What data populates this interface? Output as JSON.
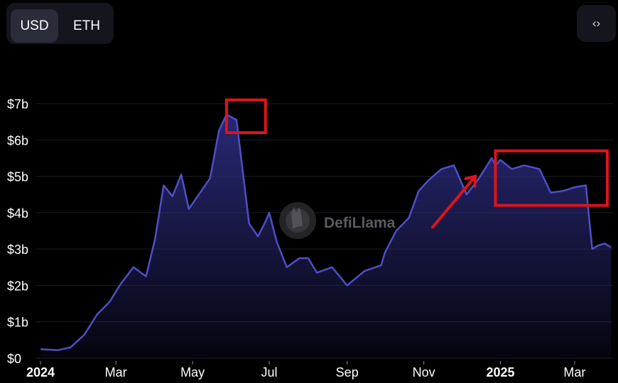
{
  "toggle": {
    "options": [
      "USD",
      "ETH"
    ],
    "selected": "USD"
  },
  "embed_icon": "code-brackets-icon",
  "watermark": {
    "text": "DefiLlama",
    "icon": "llama-logo-icon"
  },
  "colors": {
    "line": "#4f4fc7",
    "area_top": "#2a2a7a",
    "highlight_box": "#e0121c",
    "arrow": "#e0121c"
  },
  "chart_data": {
    "type": "area",
    "title": "",
    "xlabel": "",
    "ylabel": "",
    "ylim": [
      0,
      7
    ],
    "y_ticks": [
      "$0",
      "$1b",
      "$2b",
      "$3b",
      "$4b",
      "$5b",
      "$6b",
      "$7b"
    ],
    "y_tick_values": [
      0,
      1,
      2,
      3,
      4,
      5,
      6,
      7
    ],
    "x_ticks": [
      "2024",
      "Mar",
      "Jul",
      "May",
      "Sep",
      "Nov",
      "2025",
      "Mar"
    ],
    "x_tick_dates": [
      "2024-01-01",
      "2024-03-01",
      "2024-07-01",
      "2024-05-01",
      "2024-09-01",
      "2024-11-01",
      "2025-01-01",
      "2025-03-01"
    ],
    "x_tick_bold": [
      "2024",
      "2025"
    ],
    "unit": "USD (billions)",
    "x": [
      "2024-01-01",
      "2024-01-15",
      "2024-01-25",
      "2024-02-05",
      "2024-02-15",
      "2024-02-25",
      "2024-03-05",
      "2024-03-15",
      "2024-03-25",
      "2024-04-01",
      "2024-04-08",
      "2024-04-15",
      "2024-04-22",
      "2024-04-28",
      "2024-05-03",
      "2024-05-08",
      "2024-05-15",
      "2024-05-22",
      "2024-05-28",
      "2024-06-05",
      "2024-06-15",
      "2024-06-22",
      "2024-06-28",
      "2024-07-01",
      "2024-07-07",
      "2024-07-15",
      "2024-07-25",
      "2024-08-01",
      "2024-08-08",
      "2024-08-20",
      "2024-09-01",
      "2024-09-15",
      "2024-09-28",
      "2024-10-01",
      "2024-10-10",
      "2024-10-20",
      "2024-10-28",
      "2024-11-05",
      "2024-11-15",
      "2024-11-25",
      "2024-12-05",
      "2024-12-15",
      "2024-12-25",
      "2024-12-28",
      "2025-01-01",
      "2025-01-10",
      "2025-01-20",
      "2025-02-01",
      "2025-02-10",
      "2025-02-20",
      "2025-03-01",
      "2025-03-10",
      "2025-03-15",
      "2025-03-20",
      "2025-03-25",
      "2025-03-30"
    ],
    "values": [
      0.25,
      0.22,
      0.3,
      0.65,
      1.2,
      1.55,
      2.05,
      2.5,
      2.25,
      3.25,
      4.75,
      4.45,
      5.05,
      4.1,
      4.35,
      4.6,
      4.95,
      6.25,
      6.7,
      6.55,
      3.7,
      3.35,
      3.75,
      4.0,
      3.2,
      2.5,
      2.75,
      2.75,
      2.35,
      2.5,
      2.0,
      2.4,
      2.55,
      2.9,
      3.5,
      3.85,
      4.6,
      4.9,
      5.2,
      5.3,
      4.5,
      4.95,
      5.5,
      5.3,
      5.45,
      5.2,
      5.3,
      5.2,
      4.55,
      4.6,
      4.7,
      4.75,
      3.0,
      3.1,
      3.15,
      3.05
    ],
    "series": [
      {
        "values_ref": "values"
      }
    ],
    "grid": true,
    "legend": "none",
    "annotations": [
      {
        "type": "box",
        "label": "",
        "x_range": [
          "2024-05-28",
          "2024-06-28"
        ],
        "y_range": [
          6.2,
          7.1
        ]
      },
      {
        "type": "box",
        "label": "",
        "x_range": [
          "2024-12-28",
          "2025-03-27"
        ],
        "y_range": [
          4.2,
          5.7
        ]
      },
      {
        "type": "arrow",
        "label": "",
        "from": [
          "2024-11-08",
          3.6
        ],
        "to": [
          "2024-12-12",
          5.0
        ]
      }
    ]
  }
}
